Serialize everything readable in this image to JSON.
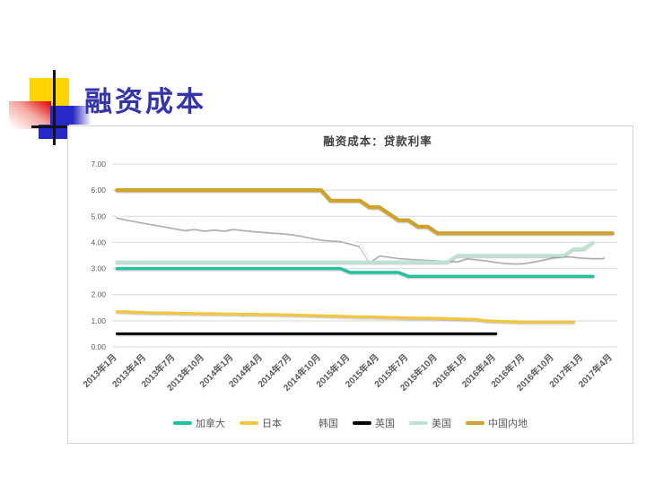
{
  "slide": {
    "title": "融资成本"
  },
  "chart_data": {
    "type": "line",
    "title": "融资成本：贷款利率",
    "xlabel": "",
    "ylabel": "",
    "ylim": [
      0,
      7
    ],
    "grid": true,
    "legend_position": "bottom",
    "months_total": 52,
    "x_start": "2013年1月",
    "x_end": "2017年4月",
    "ytick_labels": [
      "0.00",
      "1.00",
      "2.00",
      "3.00",
      "4.00",
      "5.00",
      "6.00",
      "7.00"
    ],
    "x_tick_labels": [
      "2013年1月",
      "2013年4月",
      "2013年7月",
      "2013年10月",
      "2014年1月",
      "2014年4月",
      "2014年7月",
      "2014年10月",
      "2015年1月",
      "2015年4月",
      "2015年7月",
      "2015年10月",
      "2016年1月",
      "2016年4月",
      "2016年7月",
      "2016年10月",
      "2017年1月",
      "2017年4月"
    ],
    "series": [
      {
        "name": "加拿大",
        "color": "#21C2A0",
        "width": 3.4,
        "shadow": false,
        "values": [
          3.0,
          3.0,
          3.0,
          3.0,
          3.0,
          3.0,
          3.0,
          3.0,
          3.0,
          3.0,
          3.0,
          3.0,
          3.0,
          3.0,
          3.0,
          3.0,
          3.0,
          3.0,
          3.0,
          3.0,
          3.0,
          3.0,
          3.0,
          3.0,
          2.85,
          2.85,
          2.85,
          2.85,
          2.85,
          2.85,
          2.7,
          2.7,
          2.7,
          2.7,
          2.7,
          2.7,
          2.7,
          2.7,
          2.7,
          2.7,
          2.7,
          2.7,
          2.7,
          2.7,
          2.7,
          2.7,
          2.7,
          2.7,
          2.7,
          2.7
        ]
      },
      {
        "name": "日本",
        "color": "#F2C73D",
        "width": 3.2,
        "shadow": false,
        "values": [
          1.35,
          1.34,
          1.32,
          1.31,
          1.3,
          1.3,
          1.29,
          1.28,
          1.28,
          1.27,
          1.27,
          1.26,
          1.26,
          1.25,
          1.25,
          1.24,
          1.24,
          1.23,
          1.22,
          1.21,
          1.2,
          1.19,
          1.18,
          1.17,
          1.16,
          1.15,
          1.15,
          1.14,
          1.13,
          1.12,
          1.11,
          1.1,
          1.1,
          1.09,
          1.08,
          1.07,
          1.06,
          1.05,
          1.0,
          0.98,
          0.97,
          0.96,
          0.95,
          0.95,
          0.95,
          0.95,
          0.95,
          0.95
        ]
      },
      {
        "name": "韩国",
        "color": "#FFFFFF",
        "width": 2.4,
        "shadow": true,
        "values": [
          5.0,
          4.92,
          4.85,
          4.78,
          4.72,
          4.65,
          4.58,
          4.52,
          4.56,
          4.5,
          4.54,
          4.5,
          4.56,
          4.52,
          4.48,
          4.45,
          4.42,
          4.4,
          4.36,
          4.3,
          4.22,
          4.15,
          4.12,
          4.1,
          4.0,
          3.9,
          3.3,
          3.55,
          3.5,
          3.45,
          3.42,
          3.4,
          3.38,
          3.36,
          3.34,
          3.32,
          3.44,
          3.4,
          3.36,
          3.3,
          3.26,
          3.24,
          3.26,
          3.32,
          3.4,
          3.48,
          3.52,
          3.5,
          3.46,
          3.44,
          3.45
        ]
      },
      {
        "name": "英国",
        "color": "#000000",
        "width": 3.0,
        "shadow": false,
        "values": [
          0.5,
          0.5,
          0.5,
          0.5,
          0.5,
          0.5,
          0.5,
          0.5,
          0.5,
          0.5,
          0.5,
          0.5,
          0.5,
          0.5,
          0.5,
          0.5,
          0.5,
          0.5,
          0.5,
          0.5,
          0.5,
          0.5,
          0.5,
          0.5,
          0.5,
          0.5,
          0.5,
          0.5,
          0.5,
          0.5,
          0.5,
          0.5,
          0.5,
          0.5,
          0.5,
          0.5,
          0.5,
          0.5,
          0.5,
          0.5
        ]
      },
      {
        "name": "美国",
        "color": "#BCE4D2",
        "width": 3.4,
        "shadow": false,
        "values": [
          3.25,
          3.25,
          3.25,
          3.25,
          3.25,
          3.25,
          3.25,
          3.25,
          3.25,
          3.25,
          3.25,
          3.25,
          3.25,
          3.25,
          3.25,
          3.25,
          3.25,
          3.25,
          3.25,
          3.25,
          3.25,
          3.25,
          3.25,
          3.25,
          3.25,
          3.25,
          3.25,
          3.25,
          3.25,
          3.25,
          3.25,
          3.25,
          3.25,
          3.25,
          3.25,
          3.5,
          3.5,
          3.5,
          3.5,
          3.5,
          3.5,
          3.5,
          3.5,
          3.5,
          3.5,
          3.5,
          3.5,
          3.75,
          3.75,
          4.0
        ]
      },
      {
        "name": "中国内地",
        "color": "#CFA32B",
        "width": 4.2,
        "shadow": false,
        "values": [
          6.0,
          6.0,
          6.0,
          6.0,
          6.0,
          6.0,
          6.0,
          6.0,
          6.0,
          6.0,
          6.0,
          6.0,
          6.0,
          6.0,
          6.0,
          6.0,
          6.0,
          6.0,
          6.0,
          6.0,
          6.0,
          6.0,
          5.6,
          5.6,
          5.6,
          5.6,
          5.35,
          5.35,
          5.1,
          4.85,
          4.85,
          4.6,
          4.6,
          4.35,
          4.35,
          4.35,
          4.35,
          4.35,
          4.35,
          4.35,
          4.35,
          4.35,
          4.35,
          4.35,
          4.35,
          4.35,
          4.35,
          4.35,
          4.35,
          4.35,
          4.35,
          4.35
        ]
      }
    ]
  }
}
